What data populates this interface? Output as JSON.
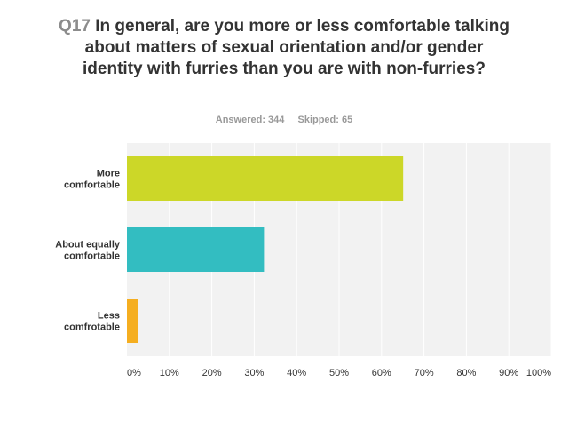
{
  "question": {
    "number": "Q17",
    "text": "In general, are you more or less comfortable talking about matters of sexual orientation and/or gender identity with furries than you are with non-furries?"
  },
  "stats": {
    "answered": "Answered: 344",
    "skipped": "Skipped: 65"
  },
  "colors": {
    "bar_colors": [
      "#ccd728",
      "#33bdc1",
      "#f5ae20"
    ],
    "plot_background": "#f2f2f2",
    "grid": "#ffffff"
  },
  "chart_data": {
    "type": "bar",
    "orientation": "horizontal",
    "title": "Q17 In general, are you more or less comfortable talking about matters of sexual orientation and/or gender identity with furries than you are with non-furries?",
    "categories": [
      [
        "More",
        "comfortable"
      ],
      [
        "About equally",
        "comfortable"
      ],
      [
        "Less",
        "comfrotable"
      ]
    ],
    "values": [
      65.1,
      32.3,
      2.6
    ],
    "xlim": [
      0,
      100
    ],
    "x_ticks": [
      0,
      10,
      20,
      30,
      40,
      50,
      60,
      70,
      80,
      90,
      100
    ],
    "x_tick_labels": [
      "0%",
      "10%",
      "20%",
      "30%",
      "40%",
      "50%",
      "60%",
      "70%",
      "80%",
      "90%",
      "100%"
    ],
    "grid": true,
    "legend": "none"
  }
}
